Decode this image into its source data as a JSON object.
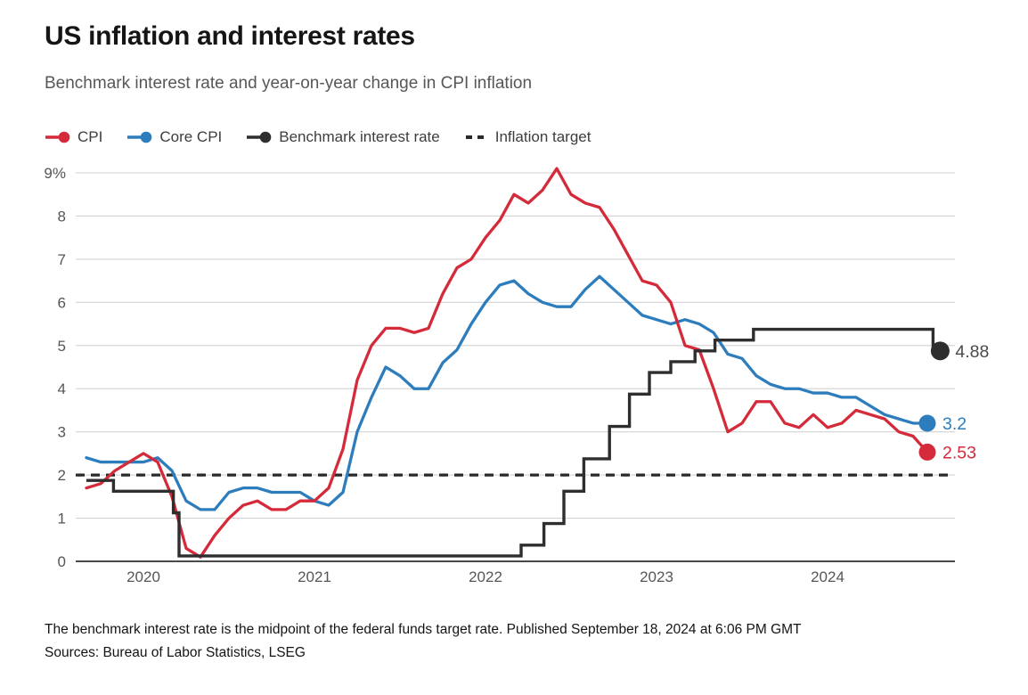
{
  "header": {
    "title": "US inflation and interest rates",
    "subtitle": "Benchmark interest rate and year-on-year change in CPI inflation"
  },
  "legend": {
    "items": [
      {
        "label": "CPI",
        "color": "#d42a3a",
        "marker": "line-dot"
      },
      {
        "label": "Core CPI",
        "color": "#2d7dbd",
        "marker": "line-dot"
      },
      {
        "label": "Benchmark interest rate",
        "color": "#2e2e2e",
        "marker": "line-dot"
      },
      {
        "label": "Inflation target",
        "color": "#2a2a2a",
        "marker": "dashes"
      }
    ]
  },
  "chart_data": {
    "type": "line",
    "title": "US inflation and interest rates",
    "xlabel": "",
    "ylabel": "%",
    "ylim": [
      0,
      9
    ],
    "grid": true,
    "legend_position": "top",
    "x_unit": "months from 2019-09 to 2024-08",
    "y_ticks": [
      "9%",
      "8",
      "7",
      "6",
      "5",
      "4",
      "3",
      "2",
      "1",
      "0"
    ],
    "x_ticks": [
      {
        "label": "2020",
        "month_index": 4
      },
      {
        "label": "2021",
        "month_index": 16
      },
      {
        "label": "2022",
        "month_index": 28
      },
      {
        "label": "2023",
        "month_index": 40
      },
      {
        "label": "2024",
        "month_index": 52
      }
    ],
    "series": [
      {
        "name": "Core CPI",
        "color": "#2d7dbd",
        "kind": "line",
        "end_label": "3.2",
        "end_label_color": "#2d7dbd",
        "values": [
          2.4,
          2.3,
          2.3,
          2.3,
          2.3,
          2.4,
          2.1,
          1.4,
          1.2,
          1.2,
          1.6,
          1.7,
          1.7,
          1.6,
          1.6,
          1.6,
          1.4,
          1.3,
          1.6,
          3.0,
          3.8,
          4.5,
          4.3,
          4.0,
          4.0,
          4.6,
          4.9,
          5.5,
          6.0,
          6.4,
          6.5,
          6.2,
          6.0,
          5.9,
          5.9,
          6.3,
          6.6,
          6.3,
          6.0,
          5.7,
          5.6,
          5.5,
          5.6,
          5.5,
          5.3,
          4.8,
          4.7,
          4.3,
          4.1,
          4.0,
          4.0,
          3.9,
          3.9,
          3.8,
          3.8,
          3.6,
          3.4,
          3.3,
          3.2,
          3.2
        ]
      },
      {
        "name": "CPI",
        "color": "#d42a3a",
        "kind": "line",
        "end_label": "2.53",
        "end_label_color": "#d42a3a",
        "values": [
          1.7,
          1.8,
          2.1,
          2.3,
          2.5,
          2.3,
          1.5,
          0.3,
          0.1,
          0.6,
          1.0,
          1.3,
          1.4,
          1.2,
          1.2,
          1.4,
          1.4,
          1.7,
          2.6,
          4.2,
          5.0,
          5.4,
          5.4,
          5.3,
          5.4,
          6.2,
          6.8,
          7.0,
          7.5,
          7.9,
          8.5,
          8.3,
          8.6,
          9.1,
          8.5,
          8.3,
          8.2,
          7.7,
          7.1,
          6.5,
          6.4,
          6.0,
          5.0,
          4.9,
          4.0,
          3.0,
          3.2,
          3.7,
          3.7,
          3.2,
          3.1,
          3.4,
          3.1,
          3.2,
          3.5,
          3.4,
          3.3,
          3.0,
          2.9,
          2.53
        ]
      },
      {
        "name": "Benchmark interest rate",
        "color": "#2e2e2e",
        "kind": "step",
        "end_label": "4.88",
        "end_label_color": "#4a4a4a",
        "breakpoints": [
          [
            0,
            1.875
          ],
          [
            1.9,
            1.625
          ],
          [
            6.1,
            1.125
          ],
          [
            6.5,
            0.125
          ],
          [
            30.5,
            0.375
          ],
          [
            32.1,
            0.875
          ],
          [
            33.5,
            1.625
          ],
          [
            34.9,
            2.375
          ],
          [
            36.7,
            3.125
          ],
          [
            38.1,
            3.875
          ],
          [
            39.5,
            4.375
          ],
          [
            41.0,
            4.625
          ],
          [
            42.7,
            4.875
          ],
          [
            44.1,
            5.125
          ],
          [
            46.8,
            5.375
          ],
          [
            59.4,
            4.875
          ]
        ]
      },
      {
        "name": "Inflation target",
        "color": "#2a2a2a",
        "kind": "dashed-constant",
        "value": 2,
        "end_label": null
      }
    ]
  },
  "footer": {
    "note": "The benchmark interest rate is the midpoint of the federal funds target rate. Published September 18, 2024 at 6:06 PM GMT",
    "sources": "Sources: Bureau of Labor Statistics, LSEG"
  }
}
